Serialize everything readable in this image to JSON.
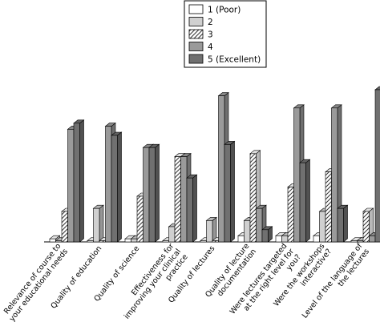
{
  "chart_data": {
    "type": "bar",
    "style": "3d-grouped",
    "ylim": [
      0,
      100
    ],
    "grid": false,
    "legend_position": "top-center",
    "categories": [
      "Relevance of course to your educational needs",
      "Quality of education",
      "Quality of science",
      "Effectiveness for improving your clinical practice",
      "Quality of lectures",
      "Quality of lecture documentation",
      "Were lectures targeted at the right level for you?",
      "Were the workshops interactive?",
      "Level of the language of the lectures"
    ],
    "series": [
      {
        "name": "1 (Poor)",
        "values": [
          1,
          0,
          1,
          0,
          0,
          2,
          2,
          2,
          0
        ]
      },
      {
        "name": "2",
        "values": [
          0,
          11,
          1,
          5,
          7,
          7,
          2,
          10,
          0
        ]
      },
      {
        "name": "3",
        "values": [
          10,
          0,
          15,
          28,
          0,
          29,
          18,
          23,
          10
        ]
      },
      {
        "name": "4",
        "values": [
          37,
          38,
          31,
          28,
          48,
          11,
          44,
          44,
          2
        ]
      },
      {
        "name": "5 (Excellent)",
        "values": [
          39,
          35,
          31,
          21,
          32,
          4,
          26,
          11,
          50
        ]
      }
    ],
    "series_styles": [
      {
        "fill": "#ffffff",
        "pattern": "none"
      },
      {
        "fill": "#d0d0d0",
        "pattern": "none"
      },
      {
        "fill": "#ffffff",
        "pattern": "hatch"
      },
      {
        "fill": "#9a9a9a",
        "pattern": "none"
      },
      {
        "fill": "#707070",
        "pattern": "none"
      }
    ]
  }
}
